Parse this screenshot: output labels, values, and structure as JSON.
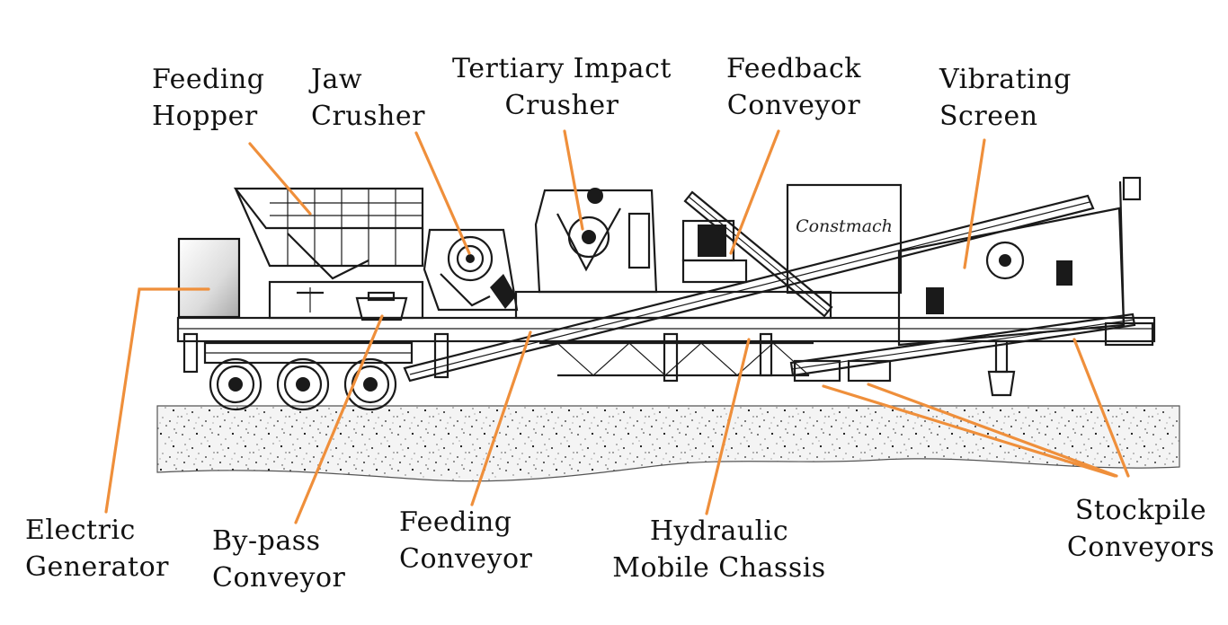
{
  "accent_color": "#ef8f3b",
  "brand_text": "Constmach",
  "labels": {
    "feeding_hopper": [
      "Feeding",
      "Hopper"
    ],
    "jaw_crusher": [
      "Jaw",
      "Crusher"
    ],
    "tertiary_impact_crusher": [
      "Tertiary Impact",
      "Crusher"
    ],
    "feedback_conveyor": [
      "Feedback",
      "Conveyor"
    ],
    "vibrating_screen": [
      "Vibrating",
      "Screen"
    ],
    "electric_generator": [
      "Electric",
      "Generator"
    ],
    "bypass_conveyor": [
      "By-pass",
      "Conveyor"
    ],
    "feeding_conveyor": [
      "Feeding",
      "Conveyor"
    ],
    "hydraulic_mobile_chassis": [
      "Hydraulic",
      "Mobile Chassis"
    ],
    "stockpile_conveyors": [
      "Stockpile",
      "Conveyors"
    ]
  }
}
